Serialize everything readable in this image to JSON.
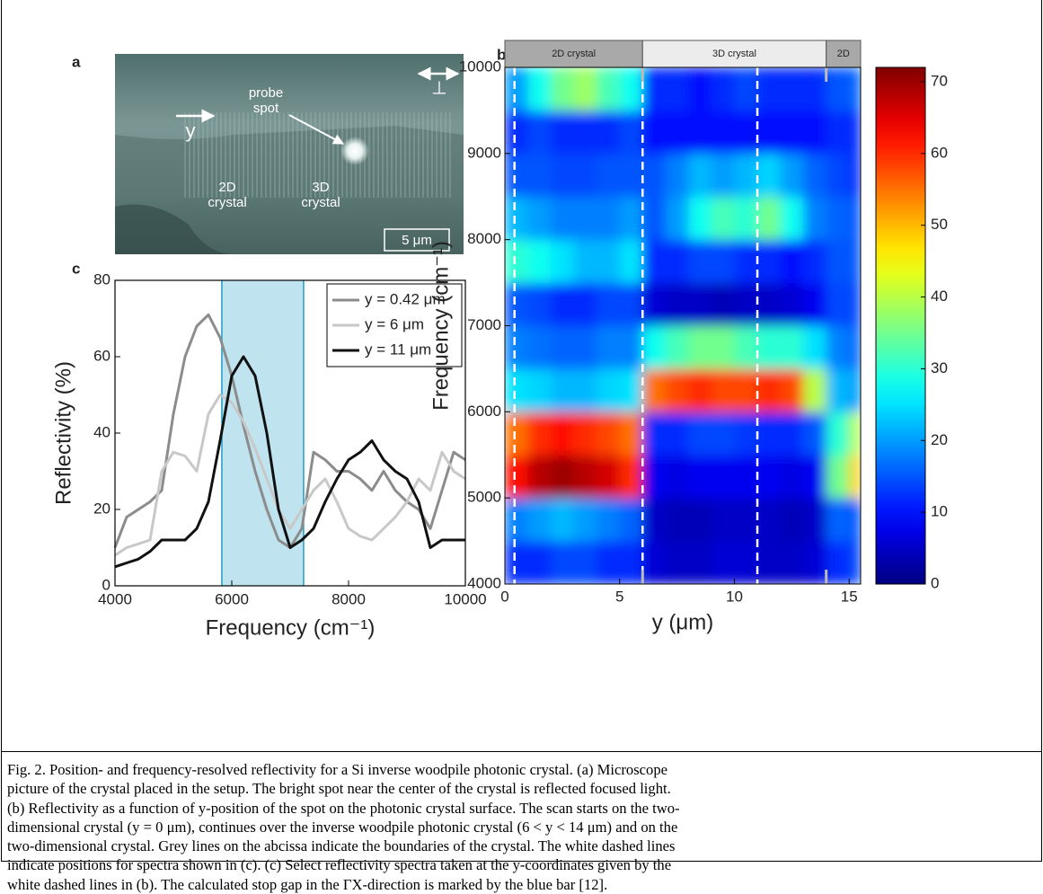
{
  "figure": {
    "panel_labels": [
      "a",
      "b",
      "c"
    ],
    "panel_a": {
      "probe_label": [
        "probe",
        "spot"
      ],
      "axis_label": "y",
      "crystal_2d": [
        "2D",
        "crystal"
      ],
      "crystal_3d": [
        "3D",
        "crystal"
      ],
      "scale_bar": "5 μm",
      "polarization": "⊥"
    }
  },
  "chart_data": [
    {
      "type": "line",
      "x_label": "Frequency (cm⁻¹)",
      "y_label": "Reflectivity (%)",
      "x": [
        4000,
        4200,
        4400,
        4600,
        4800,
        5000,
        5200,
        5400,
        5600,
        5800,
        6000,
        6200,
        6400,
        6600,
        6800,
        7000,
        7200,
        7400,
        7600,
        7800,
        8000,
        8200,
        8400,
        8600,
        8800,
        9000,
        9200,
        9400,
        9600,
        9800,
        10000
      ],
      "series": [
        {
          "name": "y = 0.42 μm",
          "color": "#8c8c8c",
          "values": [
            10,
            18,
            20,
            22,
            25,
            45,
            60,
            68,
            71,
            65,
            55,
            42,
            30,
            20,
            12,
            10,
            15,
            35,
            33,
            30,
            30,
            28,
            25,
            30,
            25,
            22,
            20,
            15,
            25,
            35,
            33
          ]
        },
        {
          "name": "y = 6 μm",
          "color": "#c8c8c8",
          "values": [
            8,
            10,
            11,
            12,
            30,
            35,
            34,
            30,
            45,
            50,
            48,
            43,
            36,
            28,
            20,
            15,
            20,
            25,
            28,
            22,
            15,
            13,
            12,
            15,
            18,
            22,
            28,
            25,
            35,
            30,
            28
          ]
        },
        {
          "name": "y = 11 μm",
          "color": "#111111",
          "values": [
            5,
            6,
            7,
            9,
            12,
            12,
            12,
            15,
            22,
            38,
            55,
            60,
            55,
            40,
            20,
            10,
            12,
            15,
            22,
            28,
            33,
            35,
            38,
            33,
            30,
            28,
            22,
            10,
            12,
            12,
            12
          ]
        }
      ],
      "xlim": [
        4000,
        10000
      ],
      "xticks": [
        4000,
        6000,
        8000,
        10000
      ],
      "ylim": [
        0,
        80
      ],
      "yticks": [
        0,
        20,
        40,
        60,
        80
      ],
      "band": {
        "range": [
          5830,
          7230
        ],
        "color": "#bfe4ef",
        "edge_color": "#1c9fc4"
      },
      "legend": "upper right"
    },
    {
      "type": "heatmap",
      "x_label": "y (μm)",
      "y_label": "Frequency (cm⁻¹)",
      "xbins": [
        0,
        1,
        2,
        3,
        4,
        5,
        6,
        7,
        8,
        9,
        10,
        11,
        12,
        13,
        14,
        15,
        15.5
      ],
      "ybins": [
        4000,
        4500,
        5000,
        5500,
        6000,
        6500,
        7000,
        7500,
        8000,
        8500,
        9000,
        9500,
        10000
      ],
      "values": [
        [
          12,
          12,
          14,
          14,
          12,
          12,
          6,
          5,
          5,
          6,
          6,
          5,
          5,
          6,
          12,
          14
        ],
        [
          18,
          20,
          22,
          20,
          18,
          16,
          5,
          4,
          4,
          5,
          5,
          5,
          4,
          5,
          16,
          15
        ],
        [
          62,
          68,
          70,
          68,
          66,
          60,
          8,
          7,
          8,
          8,
          8,
          8,
          7,
          8,
          35,
          48
        ],
        [
          55,
          60,
          62,
          60,
          58,
          55,
          12,
          12,
          14,
          14,
          13,
          12,
          12,
          15,
          30,
          40
        ],
        [
          25,
          24,
          22,
          22,
          24,
          25,
          55,
          58,
          60,
          58,
          58,
          60,
          58,
          40,
          22,
          20
        ],
        [
          18,
          17,
          16,
          16,
          18,
          18,
          28,
          32,
          35,
          35,
          32,
          30,
          30,
          25,
          18,
          16
        ],
        [
          15,
          14,
          12,
          12,
          14,
          14,
          6,
          5,
          5,
          4,
          5,
          5,
          6,
          8,
          14,
          14
        ],
        [
          30,
          28,
          25,
          22,
          22,
          25,
          12,
          12,
          14,
          14,
          12,
          12,
          10,
          12,
          15,
          15
        ],
        [
          22,
          20,
          18,
          18,
          18,
          20,
          15,
          20,
          28,
          32,
          30,
          35,
          28,
          18,
          16,
          15
        ],
        [
          15,
          15,
          14,
          14,
          15,
          15,
          15,
          18,
          22,
          20,
          22,
          24,
          20,
          16,
          14,
          12
        ],
        [
          12,
          14,
          12,
          12,
          12,
          14,
          10,
          10,
          10,
          10,
          10,
          10,
          10,
          10,
          12,
          12
        ],
        [
          20,
          28,
          35,
          38,
          32,
          28,
          12,
          12,
          10,
          12,
          14,
          12,
          12,
          12,
          15,
          16
        ]
      ],
      "xlim": [
        0,
        15.5
      ],
      "xticks": [
        0,
        5,
        10,
        15
      ],
      "ylim": [
        4000,
        10000
      ],
      "yticks": [
        4000,
        5000,
        6000,
        7000,
        8000,
        9000,
        10000
      ],
      "colormap": "jet",
      "clim": [
        0,
        72
      ],
      "cticks": [
        0,
        10,
        20,
        30,
        40,
        50,
        60,
        70
      ],
      "regions": [
        {
          "label": "2D crystal",
          "range": [
            0,
            6
          ],
          "color": "#a9a9a9"
        },
        {
          "label": "3D crystal",
          "range": [
            6,
            14
          ],
          "color": "#ececec"
        },
        {
          "label": "2D",
          "range": [
            14,
            15.5
          ],
          "color": "#a9a9a9"
        }
      ],
      "dashed_lines": [
        0.42,
        6,
        11
      ],
      "boundary_ticks": [
        6,
        14
      ]
    }
  ],
  "caption": {
    "lines": [
      "Fig. 2. Position- and frequency-resolved reflectivity for a Si inverse woodpile photonic crystal. (a) Microscope",
      "picture of the crystal placed in the setup. The bright spot near the center of the crystal is reflected focused light.",
      "(b) Reflectivity as a function of y-position of the spot on the photonic crystal surface. The scan starts on the two-",
      "dimensional crystal (y = 0 μm), continues over the inverse woodpile photonic crystal (6 < y < 14 μm) and on the",
      "two-dimensional crystal. Grey lines on the abcissa indicate the boundaries of the crystal. The white dashed lines",
      "indicate positions for spectra shown in (c). (c) Select reflectivity spectra taken at the y-coordinates given by the",
      "white dashed lines in (b). The calculated stop gap in the ΓX-direction is marked by the blue bar [12]."
    ]
  }
}
